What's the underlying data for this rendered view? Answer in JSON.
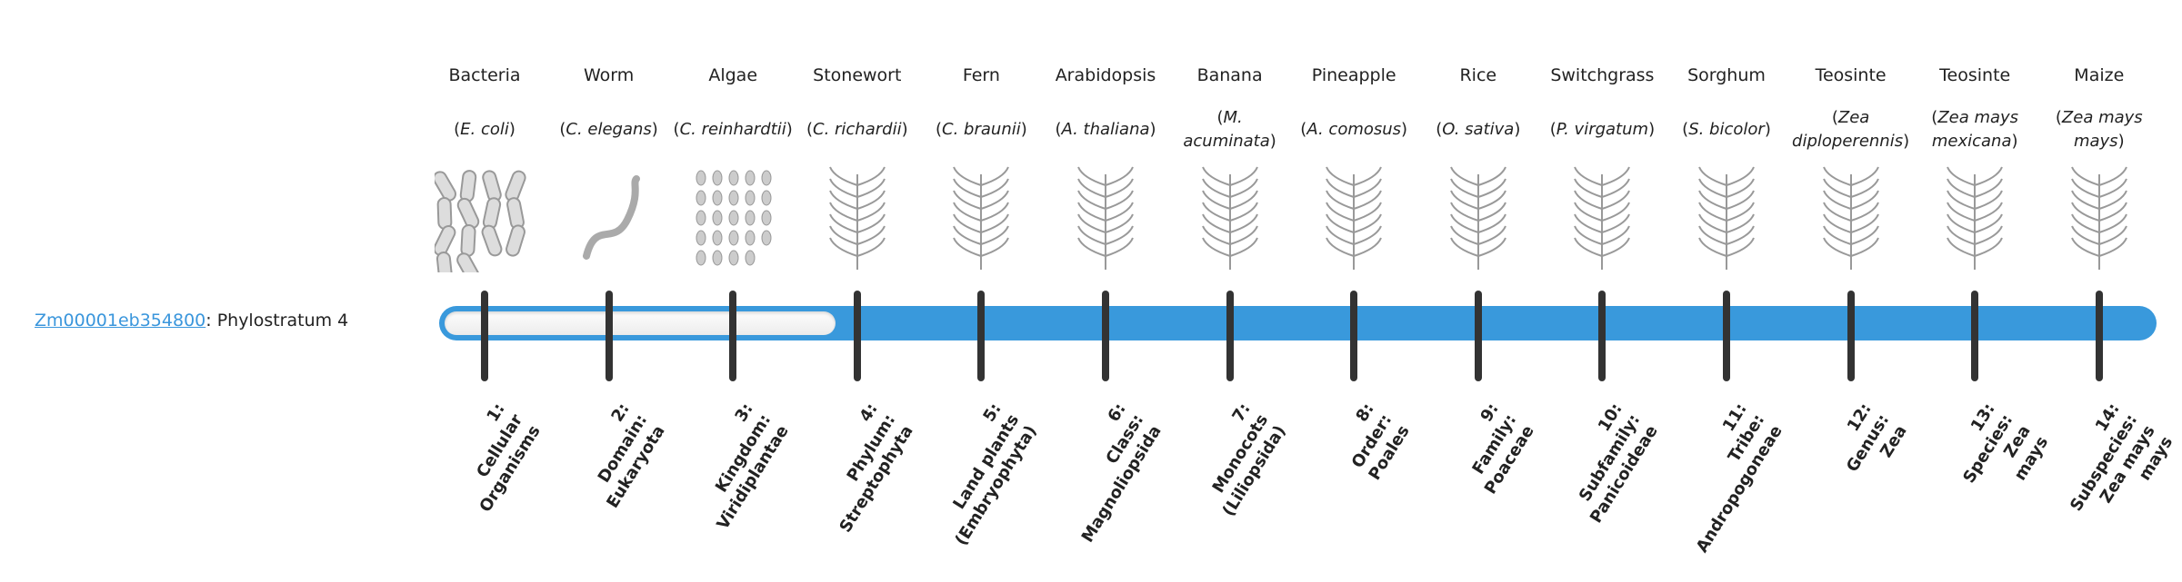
{
  "gene": {
    "id": "Zm00001eb354800",
    "suffix": ": Phylostratum 4",
    "stratum": 4,
    "total_strata": 14
  },
  "colors": {
    "bar": "#3999dc",
    "link": "#3a96dc",
    "tick": "#333333"
  },
  "organisms": [
    {
      "common": "Bacteria",
      "sci": "E. coli",
      "icon": "bacteria-icon",
      "rank": [
        "1:",
        "Cellular",
        "Organisms"
      ]
    },
    {
      "common": "Worm",
      "sci": "C. elegans",
      "icon": "worm-icon",
      "rank": [
        "2:",
        "Domain:",
        "Eukaryota"
      ]
    },
    {
      "common": "Algae",
      "sci": "C. reinhardtii",
      "icon": "algae-icon",
      "rank": [
        "3:",
        "Kingdom:",
        "Viridiplantae"
      ]
    },
    {
      "common": "Stonewort",
      "sci": "C. richardii",
      "icon": "stonewort-icon",
      "rank": [
        "4:",
        "Phylum:",
        "Streptophyta"
      ]
    },
    {
      "common": "Fern",
      "sci": "C. braunii",
      "icon": "fern-icon",
      "rank": [
        "5:",
        "Land plants",
        "(Embryophyta)"
      ]
    },
    {
      "common": "Arabidopsis",
      "sci": "A. thaliana",
      "icon": "arabidopsis-icon",
      "rank": [
        "6:",
        "Class:",
        "Magnoliopsida"
      ]
    },
    {
      "common": "Banana",
      "sci": "M. acuminata",
      "icon": "banana-icon",
      "rank": [
        "7:",
        "Monocots",
        "(Liliopsida)"
      ]
    },
    {
      "common": "Pineapple",
      "sci": "A. comosus",
      "icon": "pineapple-icon",
      "rank": [
        "8:",
        "Order:",
        "Poales"
      ]
    },
    {
      "common": "Rice",
      "sci": "O. sativa",
      "icon": "rice-icon",
      "rank": [
        "9:",
        "Family:",
        "Poaceae"
      ]
    },
    {
      "common": "Switchgrass",
      "sci": "P. virgatum",
      "icon": "switchgrass-icon",
      "rank": [
        "10:",
        "Subfamily:",
        "Panicoideae"
      ]
    },
    {
      "common": "Sorghum",
      "sci": "S. bicolor",
      "icon": "sorghum-icon",
      "rank": [
        "11:",
        "Tribe:",
        "Andropogoneae"
      ]
    },
    {
      "common": "Teosinte",
      "sci": "Zea diploperennis",
      "icon": "teosinte-icon",
      "rank": [
        "12:",
        "Genus:",
        "Zea"
      ]
    },
    {
      "common": "Teosinte",
      "sci": "Zea mays mexicana",
      "icon": "teosinte-icon",
      "rank": [
        "13:",
        "Species:",
        "Zea",
        "mays"
      ]
    },
    {
      "common": "Maize",
      "sci": "Zea mays mays",
      "icon": "maize-icon",
      "rank": [
        "14:",
        "Subspecies:",
        "Zea mays",
        "mays"
      ]
    }
  ]
}
